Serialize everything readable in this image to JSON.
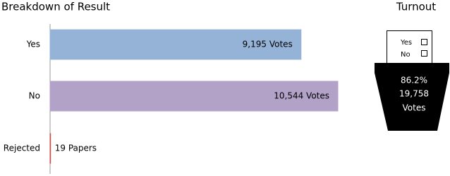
{
  "chart_data": {
    "type": "hbar",
    "title": "Breakdown of Result",
    "categories": [
      "Yes",
      "No",
      "Rejected"
    ],
    "values": [
      9195,
      10544,
      19
    ],
    "value_labels": [
      "9,195 Votes",
      "10,544 Votes",
      "19 Papers"
    ],
    "colors": [
      "#95b3d7",
      "#b3a2c7",
      "#c0504d"
    ]
  },
  "turnout": {
    "title": "Turnout",
    "ballot_options": [
      "Yes",
      "No"
    ],
    "lines": [
      "86.2%",
      "19,758",
      "Votes"
    ]
  }
}
